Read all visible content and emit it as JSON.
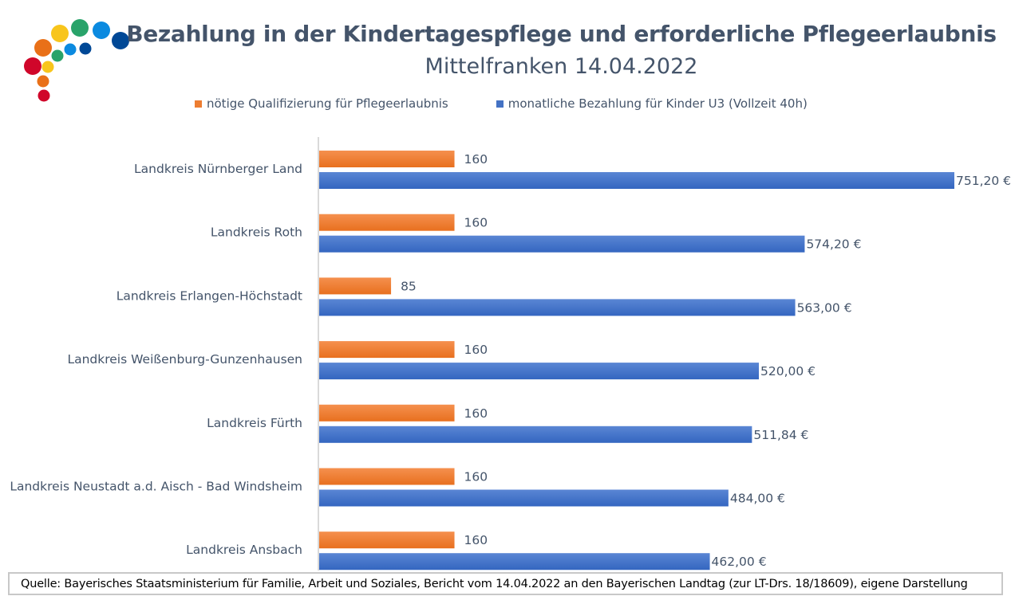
{
  "chart_data": {
    "type": "bar",
    "orientation": "horizontal",
    "title": "Bezahlung in der Kindertagespflege und erforderliche Pflegeerlaubnis",
    "subtitle": "Mittelfranken 14.04.2022",
    "categories": [
      "Landkreis Nürnberger Land",
      "Landkreis Roth",
      "Landkreis Erlangen-Höchstadt",
      "Landkreis Weißenburg-Gunzenhausen",
      "Landkreis Fürth",
      "Landkreis Neustadt a.d. Aisch - Bad Windsheim",
      "Landkreis Ansbach"
    ],
    "series": [
      {
        "name": "nötige Qualifizierung für Pflegeerlaubnis",
        "color": "#ed7d31",
        "values": [
          160,
          160,
          85,
          160,
          160,
          160,
          160
        ],
        "labels": [
          "160",
          "160",
          "85",
          "160",
          "160",
          "160",
          "160"
        ]
      },
      {
        "name": "monatliche Bezahlung für Kinder U3 (Vollzeit 40h)",
        "color": "#4472c4",
        "values": [
          751.2,
          574.2,
          563.0,
          520.0,
          511.84,
          484.0,
          462.0
        ],
        "labels": [
          "751,20 €",
          "574,20 €",
          "563,00 €",
          "520,00 €",
          "511,84 €",
          "484,00 €",
          "462,00 €"
        ]
      }
    ],
    "xlim": [
      0,
      760
    ],
    "grid": false,
    "legend_position": "top"
  },
  "footer": {
    "source": "Quelle: Bayerisches Staatsministerium für Familie, Arbeit und Soziales, Bericht vom 14.04.2022 an den Bayerischen Landtag (zur LT-Drs. 18/18609), eigene Darstellung"
  },
  "logo": {
    "colors": [
      "#d0062a",
      "#e97018",
      "#f8c51c",
      "#29a36a",
      "#0b8ae0",
      "#004896"
    ]
  }
}
